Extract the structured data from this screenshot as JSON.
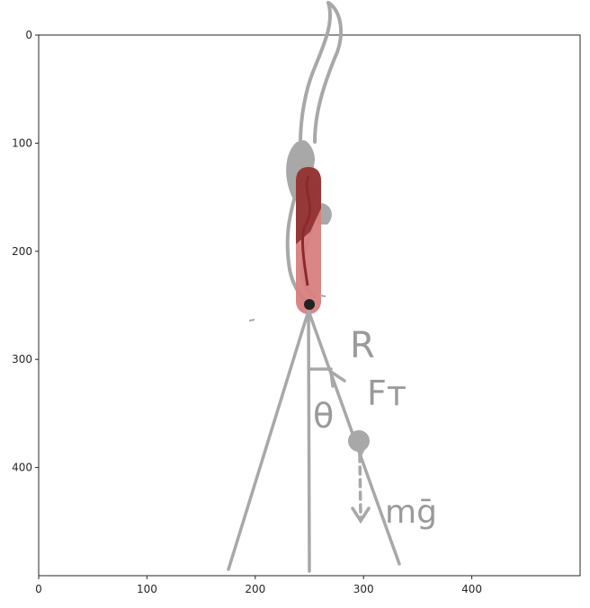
{
  "axes": {
    "xlim": [
      0,
      500
    ],
    "ylim": [
      0,
      500
    ],
    "y_inverted": true,
    "x_ticks": [
      0,
      100,
      200,
      300,
      400
    ],
    "y_ticks": [
      0,
      100,
      200,
      300,
      400
    ],
    "x_tick_labels": [
      "0",
      "100",
      "200",
      "300",
      "400"
    ],
    "y_tick_labels": [
      "0",
      "100",
      "200",
      "300",
      "400"
    ]
  },
  "annotations": {
    "radius_label": "R",
    "tension_label": "Fт",
    "angle_label": "θ",
    "weight_label": "mḡ"
  },
  "colors": {
    "sketch": "#a8a8a8",
    "pendulum_fill": "#d98080",
    "pendulum_dark": "#8b2a2a",
    "pivot": "#222222",
    "axes": "#262626"
  },
  "pendulum": {
    "pivot": [
      250,
      250
    ],
    "top": [
      250,
      135
    ],
    "bob": [
      295,
      377
    ],
    "left_leg_base": [
      175,
      495
    ],
    "right_leg_base": [
      335,
      492
    ],
    "vertical_base": [
      250,
      495
    ]
  }
}
